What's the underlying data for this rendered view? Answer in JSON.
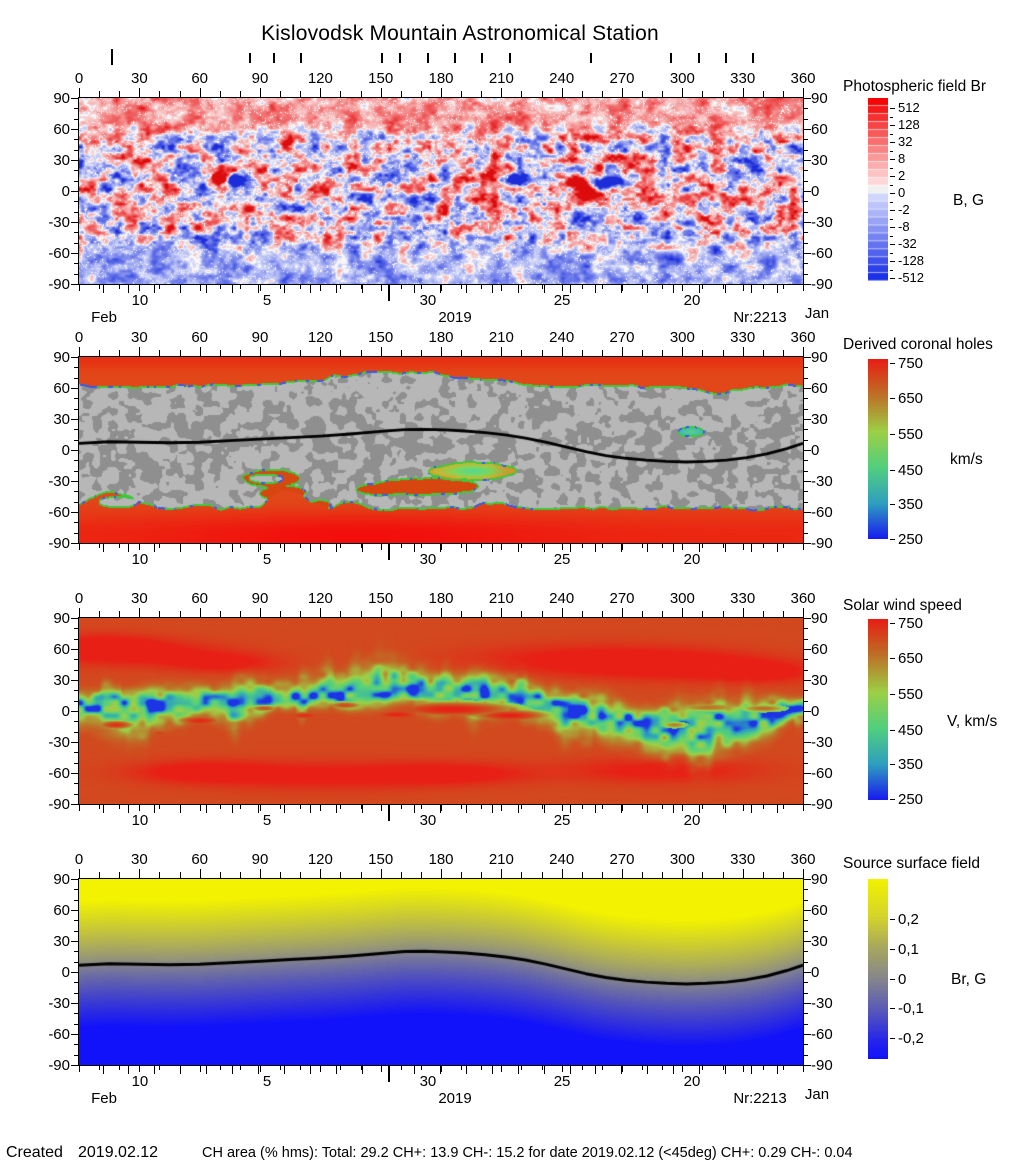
{
  "title": "Kislovodsk Mountain Astronomical Station",
  "footer": {
    "created_label": "Created",
    "created_date": "2019.02.12",
    "stats": "CH area (% hms): Total: 29.2 CH+: 13.9   CH-: 15.2 for date 2019.02.12 (<45deg) CH+: 0.29   CH-: 0.04"
  },
  "axis": {
    "lon_ticks": [
      0,
      30,
      60,
      90,
      120,
      150,
      180,
      210,
      240,
      270,
      300,
      330,
      360
    ],
    "lon_minor_step": 10,
    "lat_ticks": [
      90,
      60,
      30,
      0,
      -30,
      -60,
      -90
    ],
    "lat_minor_step": 10,
    "date_labels": [
      {
        "label": "10",
        "lon": 30.3
      },
      {
        "label": "5",
        "lon": 93.5
      },
      {
        "label": "30",
        "lon": 173.5
      },
      {
        "label": "25",
        "lon": 240.2
      },
      {
        "label": "20",
        "lon": 304.8
      }
    ],
    "month_boundary_lon": 153.6,
    "day_step_lon": 12.9,
    "left_month": "Feb",
    "right_month": "Jan",
    "year": "2019",
    "carrington_rotation": "Nr:2213",
    "observation_marks": [
      {
        "lon": 16,
        "tall": true
      },
      {
        "lon": 84.5
      },
      {
        "lon": 96.5
      },
      {
        "lon": 110
      },
      {
        "lon": 150
      },
      {
        "lon": 159
      },
      {
        "lon": 173
      },
      {
        "lon": 186.5
      },
      {
        "lon": 200
      },
      {
        "lon": 214
      },
      {
        "lon": 254
      },
      {
        "lon": 294
      },
      {
        "lon": 308
      },
      {
        "lon": 321
      },
      {
        "lon": 334.5
      }
    ]
  },
  "chart_data": [
    {
      "type": "heatmap",
      "id": "photospheric-field-br",
      "title": "Photospheric field Br",
      "unit": "B, G",
      "x_range": [
        0,
        360
      ],
      "y_range": [
        -90,
        90
      ],
      "colorbar": {
        "scale": "symlog",
        "ticks": [
          "512",
          "128",
          "32",
          "8",
          "2",
          "0",
          "-2",
          "-8",
          "-32",
          "-128",
          "-512"
        ],
        "top_color": "#f50505",
        "mid_color": "#f0f0f0",
        "bottom_color": "#1b31e8"
      },
      "active_regions": [
        {
          "lon": 70,
          "lat": 12,
          "amp": 2.2,
          "sx": 3.5,
          "sy": 4
        },
        {
          "lon": 76.5,
          "lat": 11,
          "amp": -2.8,
          "sx": 3.8,
          "sy": 4
        },
        {
          "lon": 205,
          "lat": 14,
          "amp": 1.8,
          "sx": 4,
          "sy": 4
        },
        {
          "lon": 217,
          "lat": 11,
          "amp": -1.6,
          "sx": 4.5,
          "sy": 4
        },
        {
          "lon": 250,
          "lat": 7,
          "amp": 2.4,
          "sx": 4,
          "sy": 4.5
        },
        {
          "lon": 263,
          "lat": 9,
          "amp": -2.6,
          "sx": 7,
          "sy": 4
        },
        {
          "lon": 253,
          "lat": -2,
          "amp": 1.0,
          "sx": 7,
          "sy": 6
        },
        {
          "lon": 332,
          "lat": 20,
          "amp": -1.0,
          "sx": 9,
          "sy": 6
        }
      ]
    },
    {
      "type": "heatmap",
      "id": "derived-coronal-holes",
      "title": "Derived coronal holes",
      "unit": "km/s",
      "colorbar": {
        "min": 250,
        "max": 750,
        "ticks": [
          "750",
          "650",
          "550",
          "450",
          "350",
          "250"
        ]
      },
      "polar_hole_north_lat": 62,
      "polar_hole_south_lat": -56,
      "neutral_line": [
        [
          0,
          6.5
        ],
        [
          15,
          8
        ],
        [
          30,
          7.5
        ],
        [
          45,
          7
        ],
        [
          60,
          7.5
        ],
        [
          75,
          9
        ],
        [
          90,
          10.5
        ],
        [
          105,
          12
        ],
        [
          120,
          13.5
        ],
        [
          135,
          15.5
        ],
        [
          150,
          18
        ],
        [
          162,
          19.8
        ],
        [
          172,
          20
        ],
        [
          182,
          19.4
        ],
        [
          192,
          18.4
        ],
        [
          202,
          16.8
        ],
        [
          212,
          14.6
        ],
        [
          222,
          11.6
        ],
        [
          232,
          7.6
        ],
        [
          242,
          3
        ],
        [
          252,
          -1.6
        ],
        [
          262,
          -5.4
        ],
        [
          272,
          -8
        ],
        [
          282,
          -9.8
        ],
        [
          292,
          -11
        ],
        [
          302,
          -11.6
        ],
        [
          312,
          -11
        ],
        [
          322,
          -9.8
        ],
        [
          332,
          -7.4
        ],
        [
          342,
          -3.8
        ],
        [
          352,
          1.4
        ],
        [
          360,
          6.5
        ]
      ],
      "features": {
        "gray_island": [
          19,
          -50,
          10,
          5.2
        ],
        "arc_hole": [
          96,
          -27,
          14,
          8
        ],
        "arc_inner_gray": [
          93,
          -27.5,
          8.5,
          4
        ],
        "red_holes": [
          [
            172,
            -35,
            26,
            8
          ],
          [
            150,
            -37.5,
            13,
            5.5
          ],
          [
            101,
            -41,
            11,
            7
          ],
          [
            120,
            -52,
            5,
            4
          ]
        ],
        "green_patch": [
          196,
          -20,
          21,
          8.5
        ],
        "small_green_patch": [
          304,
          18,
          6.5,
          4.5
        ],
        "south_boundary_intrusions": [
          [
            16,
            14,
            16
          ],
          [
            104,
            11,
            18
          ],
          [
            135,
            7,
            5
          ],
          [
            207,
            9,
            6
          ],
          [
            60,
            8,
            4
          ]
        ],
        "north_boundary_bump": [
          158,
          48,
          14
        ],
        "north_boundary_notch": [
          318,
          14,
          7
        ]
      }
    },
    {
      "type": "heatmap",
      "id": "solar-wind-speed",
      "title": "Solar wind speed",
      "unit": "V, km/s",
      "colorbar": {
        "min": 250,
        "max": 750,
        "ticks": [
          "750",
          "650",
          "550",
          "450",
          "350",
          "250"
        ]
      },
      "fast_islands": [
        [
          185,
          2,
          40,
          9,
          1
        ],
        [
          214,
          -4,
          23,
          7,
          1
        ],
        [
          158,
          -3,
          19,
          6,
          0.99
        ],
        [
          112,
          -4,
          14,
          5,
          0.97
        ],
        [
          60,
          -9,
          14,
          6,
          0.98
        ],
        [
          18,
          -13,
          11,
          5,
          0.96
        ],
        [
          40,
          -21,
          8,
          4.5,
          0.92
        ],
        [
          313,
          4,
          20,
          4.5,
          0.8
        ],
        [
          340,
          3,
          13,
          4,
          0.82
        ],
        [
          296,
          -13,
          7,
          3.5,
          0.78
        ],
        [
          132,
          6,
          10,
          4,
          0.9
        ],
        [
          92,
          3,
          8,
          3.5,
          0.88
        ]
      ],
      "fast_polar_regions": [
        [
          28,
          56,
          45,
          12
        ],
        [
          72,
          47,
          25,
          9
        ],
        [
          255,
          50,
          60,
          15
        ],
        [
          300,
          44,
          45,
          13
        ],
        [
          338,
          38,
          26,
          10
        ],
        [
          10,
          64,
          30,
          11
        ],
        [
          120,
          -62,
          65,
          13
        ],
        [
          60,
          -58,
          32,
          10
        ],
        [
          185,
          -60,
          38,
          10
        ],
        [
          290,
          -57,
          45,
          12
        ]
      ]
    },
    {
      "type": "heatmap",
      "id": "source-surface-field",
      "title": "Source surface field",
      "unit": "Br, G",
      "colorbar": {
        "ticks": [
          "0,2",
          "0,1",
          "0",
          "-0,1",
          "-0,2"
        ],
        "top_color": "#f2f201",
        "mid_color": "#85858d",
        "bottom_color": "#1212fa"
      },
      "neutral_line": [
        [
          0,
          6.5
        ],
        [
          15,
          8
        ],
        [
          30,
          7.5
        ],
        [
          45,
          7
        ],
        [
          60,
          7.5
        ],
        [
          75,
          9
        ],
        [
          90,
          10.5
        ],
        [
          105,
          12
        ],
        [
          120,
          13.5
        ],
        [
          135,
          15.5
        ],
        [
          150,
          18
        ],
        [
          162,
          19.8
        ],
        [
          172,
          20
        ],
        [
          182,
          19.4
        ],
        [
          192,
          18.4
        ],
        [
          202,
          16.8
        ],
        [
          212,
          14.6
        ],
        [
          222,
          11.6
        ],
        [
          232,
          7.6
        ],
        [
          242,
          3
        ],
        [
          252,
          -1.6
        ],
        [
          262,
          -5.4
        ],
        [
          272,
          -8
        ],
        [
          282,
          -9.8
        ],
        [
          292,
          -11
        ],
        [
          302,
          -11.6
        ],
        [
          312,
          -11
        ],
        [
          322,
          -9.8
        ],
        [
          332,
          -7.4
        ],
        [
          342,
          -3.8
        ],
        [
          352,
          1.4
        ],
        [
          360,
          6.5
        ]
      ]
    }
  ]
}
